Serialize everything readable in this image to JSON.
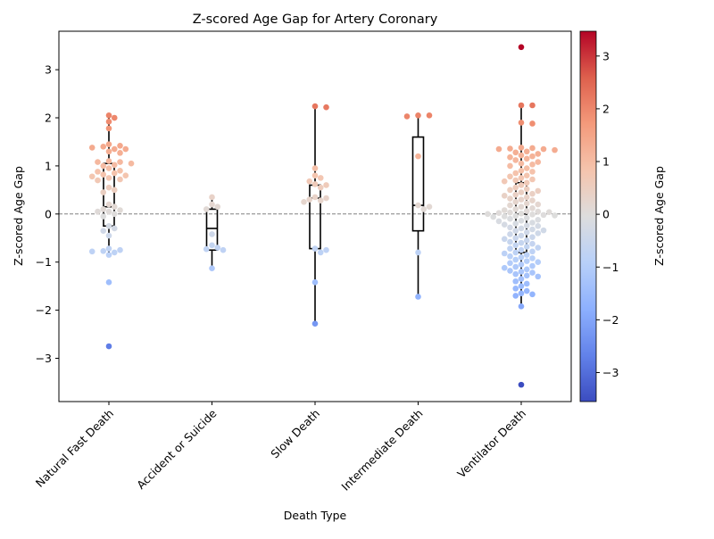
{
  "chart_data": {
    "type": "scatter",
    "subtype": "box-swarm",
    "title": "Z-scored Age Gap for Artery Coronary",
    "xlabel": "Death Type",
    "ylabel": "Z-scored Age Gap",
    "ylim": [
      -3.9,
      3.8
    ],
    "yticks": [
      -3,
      -2,
      -1,
      0,
      1,
      2,
      3
    ],
    "reference_line": {
      "y": 0,
      "style": "dashed",
      "color": "#808080"
    },
    "colorbar": {
      "label": "Z-scored Age Gap",
      "min": -3.55,
      "max": 3.47,
      "ticks": [
        -3,
        -2,
        -1,
        0,
        1,
        2,
        3
      ],
      "colormap": "coolwarm"
    },
    "categories": [
      "Natural Fast Death",
      "Accident or Suicide",
      "Slow Death",
      "Intermediate Death",
      "Ventilator Death"
    ],
    "boxes": [
      {
        "category": "Natural Fast Death",
        "q1": -0.25,
        "median": 0.15,
        "q3": 1.05,
        "whisker_low": -0.85,
        "whisker_high": 2.05
      },
      {
        "category": "Accident or Suicide",
        "q1": -0.75,
        "median": -0.3,
        "q3": 0.1,
        "whisker_low": -1.13,
        "whisker_high": 0.35
      },
      {
        "category": "Slow Death",
        "q1": -0.72,
        "median": 0.33,
        "q3": 0.6,
        "whisker_low": -2.28,
        "whisker_high": 2.24
      },
      {
        "category": "Intermediate Death",
        "q1": -0.35,
        "median": 0.18,
        "q3": 1.6,
        "whisker_low": -1.72,
        "whisker_high": 2.05
      },
      {
        "category": "Ventilator Death",
        "q1": -0.8,
        "median": 0.0,
        "q3": 0.65,
        "whisker_low": -1.92,
        "whisker_high": 2.26
      }
    ],
    "points": [
      [
        2.05,
        2.0,
        1.92,
        1.78,
        1.45,
        1.42,
        1.4,
        1.38,
        1.35,
        1.35,
        1.3,
        1.27,
        1.1,
        1.08,
        1.08,
        1.05,
        1.02,
        1.0,
        0.95,
        0.9,
        0.88,
        0.85,
        0.82,
        0.8,
        0.78,
        0.75,
        0.72,
        0.7,
        0.55,
        0.5,
        0.45,
        0.2,
        0.15,
        0.1,
        0.08,
        0.05,
        0.05,
        0.0,
        -0.05,
        -0.25,
        -0.3,
        -0.35,
        -0.45,
        -0.72,
        -0.75,
        -0.77,
        -0.78,
        -0.8,
        -0.85,
        -1.42,
        -2.75
      ],
      [
        0.35,
        0.2,
        0.15,
        0.1,
        -0.42,
        -0.65,
        -0.7,
        -0.73,
        -0.75,
        -1.13
      ],
      [
        2.24,
        2.22,
        0.95,
        0.8,
        0.75,
        0.68,
        0.62,
        0.6,
        0.55,
        0.35,
        0.33,
        0.3,
        0.28,
        0.25,
        -0.72,
        -0.75,
        -0.8,
        -1.42,
        -2.28
      ],
      [
        2.05,
        2.05,
        2.03,
        1.2,
        0.18,
        0.15,
        0.1,
        -0.8,
        -1.72
      ],
      [
        3.47,
        2.26,
        2.26,
        1.9,
        1.88,
        1.38,
        1.37,
        1.36,
        1.35,
        1.35,
        1.33,
        1.3,
        1.28,
        1.25,
        1.22,
        1.2,
        1.18,
        1.15,
        1.12,
        1.08,
        1.05,
        1.03,
        1.0,
        0.95,
        0.9,
        0.88,
        0.85,
        0.8,
        0.78,
        0.75,
        0.72,
        0.7,
        0.68,
        0.65,
        0.6,
        0.55,
        0.52,
        0.5,
        0.48,
        0.45,
        0.42,
        0.4,
        0.38,
        0.35,
        0.32,
        0.3,
        0.28,
        0.25,
        0.22,
        0.2,
        0.18,
        0.15,
        0.12,
        0.1,
        0.08,
        0.06,
        0.05,
        0.04,
        0.03,
        0.02,
        0.01,
        0.0,
        -0.01,
        -0.02,
        -0.03,
        -0.04,
        -0.05,
        -0.06,
        -0.08,
        -0.1,
        -0.12,
        -0.14,
        -0.15,
        -0.18,
        -0.2,
        -0.22,
        -0.24,
        -0.25,
        -0.28,
        -0.3,
        -0.32,
        -0.34,
        -0.35,
        -0.38,
        -0.4,
        -0.42,
        -0.45,
        -0.48,
        -0.5,
        -0.52,
        -0.55,
        -0.58,
        -0.6,
        -0.62,
        -0.65,
        -0.68,
        -0.7,
        -0.72,
        -0.75,
        -0.78,
        -0.8,
        -0.82,
        -0.85,
        -0.88,
        -0.9,
        -0.92,
        -0.95,
        -0.98,
        -1.0,
        -1.02,
        -1.05,
        -1.08,
        -1.1,
        -1.12,
        -1.15,
        -1.18,
        -1.2,
        -1.22,
        -1.25,
        -1.28,
        -1.3,
        -1.35,
        -1.4,
        -1.45,
        -1.5,
        -1.55,
        -1.6,
        -1.65,
        -1.67,
        -1.7,
        -1.92,
        -3.55
      ]
    ]
  }
}
